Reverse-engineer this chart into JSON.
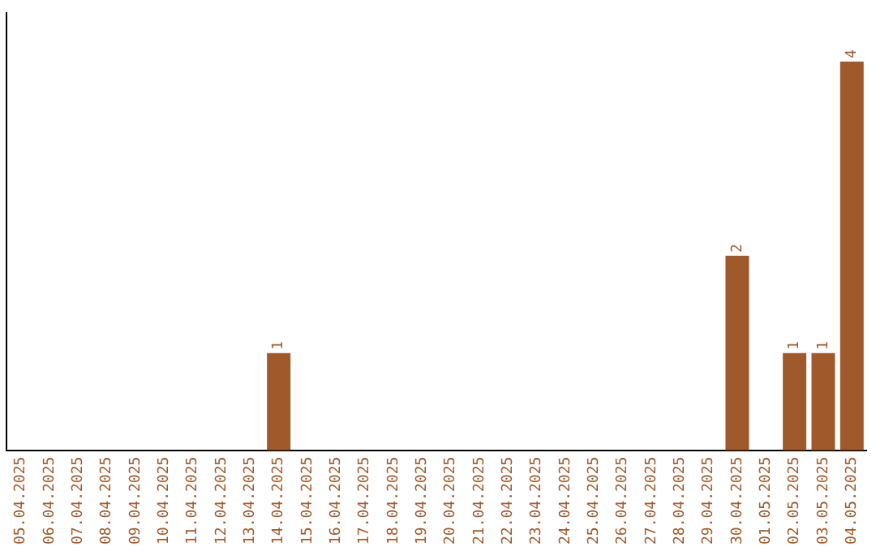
{
  "chart_data": {
    "type": "bar",
    "categories": [
      "05.04.2025",
      "06.04.2025",
      "07.04.2025",
      "08.04.2025",
      "09.04.2025",
      "10.04.2025",
      "11.04.2025",
      "12.04.2025",
      "13.04.2025",
      "14.04.2025",
      "15.04.2025",
      "16.04.2025",
      "17.04.2025",
      "18.04.2025",
      "19.04.2025",
      "20.04.2025",
      "21.04.2025",
      "22.04.2025",
      "23.04.2025",
      "24.04.2025",
      "25.04.2025",
      "26.04.2025",
      "27.04.2025",
      "28.04.2025",
      "29.04.2025",
      "30.04.2025",
      "01.05.2025",
      "02.05.2025",
      "03.05.2025",
      "04.05.2025"
    ],
    "values": [
      0,
      0,
      0,
      0,
      0,
      0,
      0,
      0,
      0,
      1,
      0,
      0,
      0,
      0,
      0,
      0,
      0,
      0,
      0,
      0,
      0,
      0,
      0,
      0,
      0,
      2,
      0,
      1,
      1,
      4
    ],
    "value_labels": [
      null,
      null,
      null,
      null,
      null,
      null,
      null,
      null,
      null,
      "1",
      null,
      null,
      null,
      null,
      null,
      null,
      null,
      null,
      null,
      null,
      null,
      null,
      null,
      null,
      null,
      "2",
      null,
      "1",
      "1",
      "4"
    ],
    "color": "#a0592a",
    "grid": false,
    "legend": false,
    "tick_labels": "x"
  }
}
